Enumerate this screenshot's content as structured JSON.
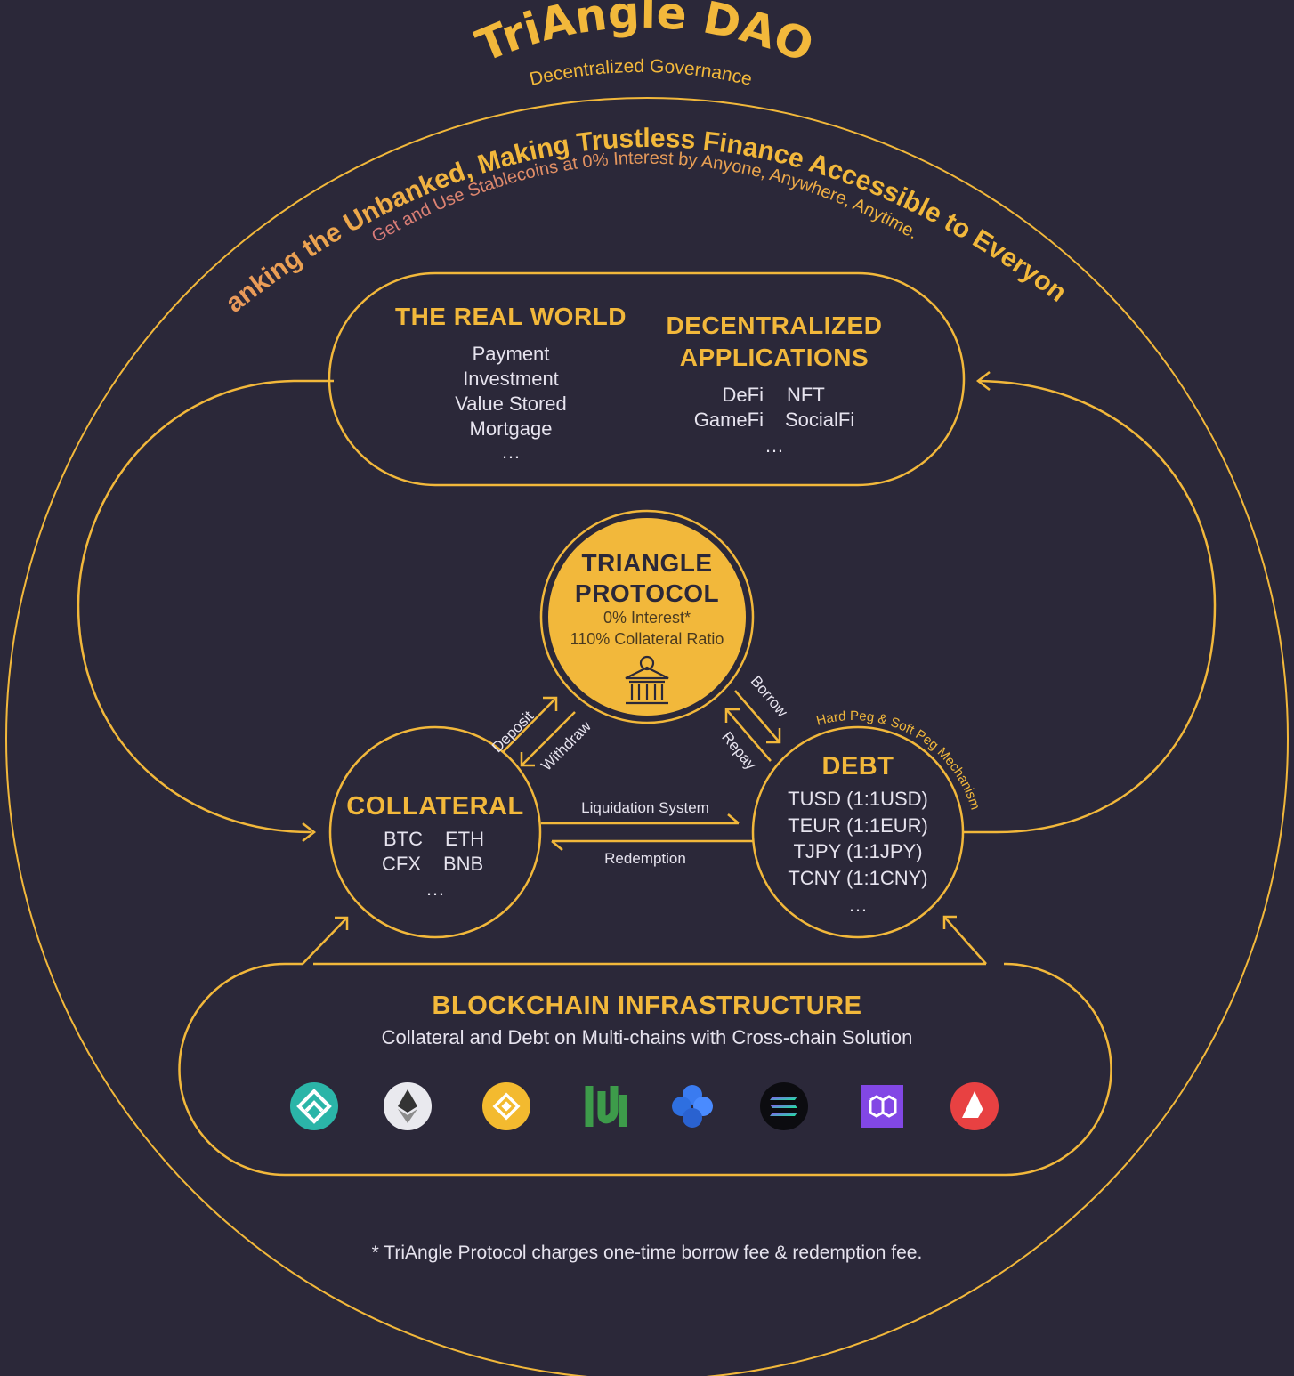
{
  "header": {
    "title": "TriAngle DAO",
    "subtitle": "Decentralized Governance"
  },
  "mission": {
    "headline": "Banking the Unbanked, Making Trustless Finance Accessible to Everyone.",
    "subline": "Get and Use Stablecoins at 0% Interest by Anyone, Anywhere, Anytime."
  },
  "real_world": {
    "title": "THE REAL WORLD",
    "items": [
      "Payment",
      "Investment",
      "Value Stored",
      "Mortgage",
      "…"
    ]
  },
  "dapps": {
    "title_line1": "DECENTRALIZED",
    "title_line2": "APPLICATIONS",
    "items": [
      "DeFi",
      "NFT",
      "GameFi",
      "SocialFi"
    ],
    "more": "…"
  },
  "protocol": {
    "title_line1": "TRIANGLE",
    "title_line2": "PROTOCOL",
    "line1": "0% Interest*",
    "line2": "110% Collateral Ratio",
    "icon": "bank-icon"
  },
  "collateral": {
    "title": "COLLATERAL",
    "items": [
      "BTC",
      "ETH",
      "CFX",
      "BNB"
    ],
    "more": "…"
  },
  "debt": {
    "title": "DEBT",
    "items": [
      "TUSD (1:1USD)",
      "TEUR (1:1EUR)",
      "TJPY (1:1JPY)",
      "TCNY (1:1CNY)"
    ],
    "more": "…",
    "peg_label": "Hard Peg & Soft Peg Mechanism"
  },
  "flows": {
    "deposit": "Deposit",
    "withdraw": "Withdraw",
    "borrow": "Borrow",
    "repay": "Repay",
    "liquidation": "Liquidation System",
    "redemption": "Redemption"
  },
  "infrastructure": {
    "title": "BLOCKCHAIN INFRASTRUCTURE",
    "subtitle": "Collateral and Debt on Multi-chains with Cross-chain Solution",
    "chains": [
      {
        "icon": "conflux-icon",
        "color": "#2bb5a8"
      },
      {
        "icon": "ethereum-icon",
        "color": "#e9e9ee"
      },
      {
        "icon": "bnb-chain-icon",
        "color": "#f3ba2f"
      },
      {
        "icon": "heco-icon",
        "color": "#3d9b4a"
      },
      {
        "icon": "oasis-icon",
        "color": "#3a7bf0"
      },
      {
        "icon": "solana-icon",
        "color": "#14f195"
      },
      {
        "icon": "polygon-icon",
        "color": "#8247e5"
      },
      {
        "icon": "avalanche-icon",
        "color": "#e84142"
      }
    ]
  },
  "footnote": "* TriAngle Protocol charges one-time borrow fee & redemption fee.",
  "colors": {
    "background": "#2b2839",
    "accent": "#f2b83b",
    "text": "#e6e3ee",
    "headline_start": "#e07a7a"
  }
}
